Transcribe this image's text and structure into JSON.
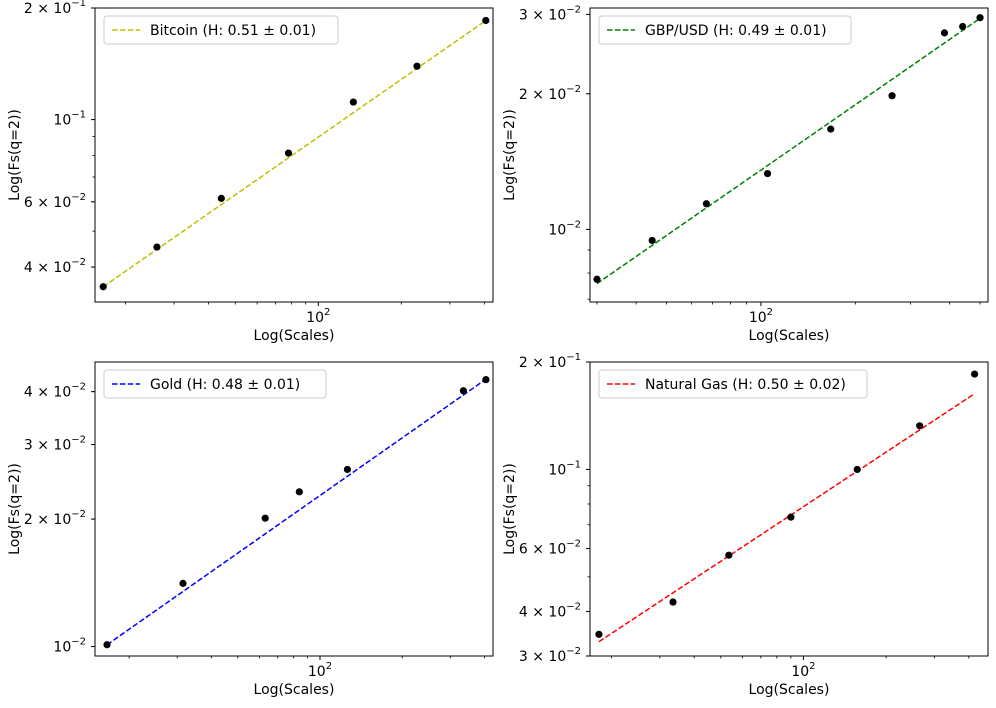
{
  "chart_data": [
    {
      "type": "scatter",
      "xlabel": "Log(Scales)",
      "ylabel": "Log(Fs(q=2))",
      "xscale": "log",
      "yscale": "log",
      "xlim": [
        15.5,
        430
      ],
      "ylim": [
        0.0322,
        0.2
      ],
      "xticks": [
        {
          "value": 100,
          "label": "10",
          "sup": "2"
        }
      ],
      "yticks": [
        {
          "value": 0.2,
          "label": "2 × 10",
          "sup": "−1"
        },
        {
          "value": 0.1,
          "label": "10",
          "sup": "−1"
        },
        {
          "value": 0.06,
          "label": "6 × 10",
          "sup": "−2"
        },
        {
          "value": 0.04,
          "label": "4 × 10",
          "sup": "−2"
        }
      ],
      "grid": false,
      "legend_position": "upper left",
      "series": [
        {
          "name": "Bitcoin (H: 0.51 ± 0.01)",
          "color": "#bfbf00",
          "linestyle": "dashed",
          "fit": {
            "x": [
              16.6,
              405
            ],
            "y": [
              0.0354,
              0.185
            ]
          },
          "points": [
            [
              16.6,
              0.0354
            ],
            [
              26,
              0.0453
            ],
            [
              44.5,
              0.0613
            ],
            [
              78,
              0.0812
            ],
            [
              134,
              0.1115
            ],
            [
              228,
              0.1393
            ],
            [
              405,
              0.1851
            ]
          ]
        }
      ]
    },
    {
      "type": "scatter",
      "xlabel": "Log(Scales)",
      "ylabel": "Log(Fs(q=2))",
      "xscale": "log",
      "yscale": "log",
      "xlim": [
        28.5,
        530
      ],
      "ylim": [
        0.0069,
        0.031
      ],
      "xticks": [
        {
          "value": 100,
          "label": "10",
          "sup": "2"
        }
      ],
      "yticks": [
        {
          "value": 0.03,
          "label": "3 × 10",
          "sup": "−2"
        },
        {
          "value": 0.02,
          "label": "2 × 10",
          "sup": "−2"
        },
        {
          "value": 0.01,
          "label": "10",
          "sup": "−2"
        }
      ],
      "grid": false,
      "legend_position": "upper left",
      "series": [
        {
          "name": "GBP/USD (H: 0.49 ± 0.01)",
          "color": "#008000",
          "linestyle": "dashed",
          "fit": {
            "x": [
              30,
              500
            ],
            "y": [
              0.00758,
              0.0294
            ]
          },
          "points": [
            [
              30,
              0.00775
            ],
            [
              45,
              0.00945
            ],
            [
              67,
              0.0114
            ],
            [
              105,
              0.0133
            ],
            [
              167,
              0.0167
            ],
            [
              262,
              0.0198
            ],
            [
              385,
              0.0273
            ],
            [
              440,
              0.0282
            ],
            [
              500,
              0.0295
            ]
          ]
        }
      ]
    },
    {
      "type": "scatter",
      "xlabel": "Log(Scales)",
      "ylabel": "Log(Fs(q=2))",
      "xscale": "log",
      "yscale": "log",
      "xlim": [
        15.0,
        430
      ],
      "ylim": [
        0.0095,
        0.047
      ],
      "xticks": [
        {
          "value": 100,
          "label": "10",
          "sup": "2"
        }
      ],
      "yticks": [
        {
          "value": 0.04,
          "label": "4 × 10",
          "sup": "−2"
        },
        {
          "value": 0.03,
          "label": "3 × 10",
          "sup": "−2"
        },
        {
          "value": 0.02,
          "label": "2 × 10",
          "sup": "−2"
        },
        {
          "value": 0.01,
          "label": "10",
          "sup": "−2"
        }
      ],
      "grid": false,
      "legend_position": "upper left",
      "series": [
        {
          "name": "Gold (H: 0.48 ± 0.01)",
          "color": "#0000ff",
          "linestyle": "dashed",
          "fit": {
            "x": [
              16.6,
              405
            ],
            "y": [
              0.0101,
              0.0428
            ]
          },
          "points": [
            [
              16.6,
              0.0101
            ],
            [
              31.5,
              0.0141
            ],
            [
              63,
              0.0201
            ],
            [
              84,
              0.0232
            ],
            [
              126,
              0.0262
            ],
            [
              335,
              0.0402
            ],
            [
              405,
              0.0427
            ]
          ]
        }
      ]
    },
    {
      "type": "scatter",
      "xlabel": "Log(Scales)",
      "ylabel": "Log(Fs(q=2))",
      "xscale": "log",
      "yscale": "log",
      "xlim": [
        16.7,
        470
      ],
      "ylim": [
        0.03,
        0.2
      ],
      "xticks": [
        {
          "value": 100,
          "label": "10",
          "sup": "2"
        }
      ],
      "yticks": [
        {
          "value": 0.2,
          "label": "2 × 10",
          "sup": "−1"
        },
        {
          "value": 0.1,
          "label": "10",
          "sup": "−1"
        },
        {
          "value": 0.06,
          "label": "6 × 10",
          "sup": "−2"
        },
        {
          "value": 0.04,
          "label": "4 × 10",
          "sup": "−2"
        },
        {
          "value": 0.03,
          "label": "3 × 10",
          "sup": "−2"
        }
      ],
      "grid": false,
      "legend_position": "upper left",
      "series": [
        {
          "name": "Natural Gas (H: 0.50 ± 0.02)",
          "color": "#ff0000",
          "linestyle": "dashed",
          "fit": {
            "x": [
              18,
              420
            ],
            "y": [
              0.0329,
              0.163
            ]
          },
          "points": [
            [
              18,
              0.0345
            ],
            [
              33.5,
              0.0425
            ],
            [
              53.5,
              0.0575
            ],
            [
              90,
              0.0735
            ],
            [
              157,
              0.1
            ],
            [
              265,
              0.1325
            ],
            [
              420,
              0.185
            ]
          ]
        }
      ]
    }
  ]
}
